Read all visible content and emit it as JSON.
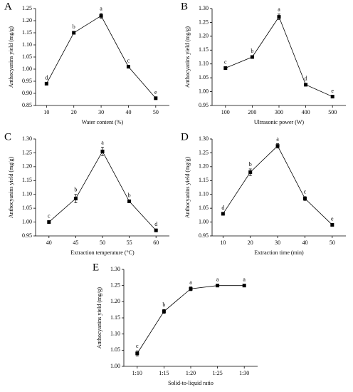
{
  "chart_data": [
    {
      "type": "line",
      "panel": "A",
      "x_label": "Water content (%)",
      "y_label": "Anthocyanins yield (mg/g)",
      "x": [
        10,
        20,
        30,
        40,
        50
      ],
      "values": [
        0.94,
        1.15,
        1.22,
        1.01,
        0.88
      ],
      "errors": [
        0.005,
        0.005,
        0.01,
        0.005,
        0.005
      ],
      "letters": [
        "d",
        "b",
        "a",
        "c",
        "e"
      ],
      "color": "#000000",
      "xlim": [
        6,
        55
      ],
      "xticks": [
        10,
        20,
        30,
        40,
        50
      ],
      "ylim": [
        0.85,
        1.25
      ],
      "yticks": [
        0.85,
        {
          "value": 0.9,
          "label": "0.90"
        },
        0.95,
        {
          "value": 1.0,
          "label": "1.00"
        },
        1.05,
        {
          "value": 1.1,
          "label": "1.10"
        },
        1.15,
        {
          "value": 1.2,
          "label": "1.20"
        },
        1.25
      ]
    },
    {
      "type": "line",
      "panel": "B",
      "x_label": "Ultrasonic power (W)",
      "y_label": "Anthocyanins yield (mg/g)",
      "x": [
        100,
        200,
        300,
        400,
        500
      ],
      "values": [
        1.085,
        1.125,
        1.27,
        1.025,
        0.982
      ],
      "errors": [
        0.005,
        0.005,
        0.01,
        0.005,
        0.004
      ],
      "letters": [
        "c",
        "b",
        "a",
        "d",
        "e"
      ],
      "color": "#000000",
      "xlim": [
        50,
        550
      ],
      "xticks": [
        100,
        200,
        300,
        400,
        500
      ],
      "ylim": [
        0.95,
        1.3
      ],
      "yticks": [
        0.95,
        {
          "value": 1.0,
          "label": "1.00"
        },
        1.05,
        {
          "value": 1.1,
          "label": "1.10"
        },
        1.15,
        {
          "value": 1.2,
          "label": "1.20"
        },
        1.25,
        {
          "value": 1.3,
          "label": "1.30"
        }
      ]
    },
    {
      "type": "line",
      "panel": "C",
      "x_label": "Extraction temperature (°C)",
      "y_label": "Anthocyanins yield (mg/g)",
      "x": [
        40,
        45,
        50,
        55,
        60
      ],
      "values": [
        1.0,
        1.085,
        1.255,
        1.075,
        0.97
      ],
      "errors": [
        0.005,
        0.015,
        0.015,
        0.005,
        0.005
      ],
      "letters": [
        "c",
        "b",
        "a",
        "b",
        "d"
      ],
      "color": "#000000",
      "xlim": [
        37.5,
        62.5
      ],
      "xticks": [
        40,
        45,
        50,
        55,
        60
      ],
      "ylim": [
        0.95,
        1.3
      ],
      "yticks": [
        0.95,
        {
          "value": 1.0,
          "label": "1.00"
        },
        1.05,
        {
          "value": 1.1,
          "label": "1.10"
        },
        1.15,
        {
          "value": 1.2,
          "label": "1.20"
        },
        1.25,
        {
          "value": 1.3,
          "label": "1.30"
        }
      ]
    },
    {
      "type": "line",
      "panel": "D",
      "x_label": "Extraction time (min)",
      "y_label": "Anthocyanins yield (mg/g)",
      "x": [
        10,
        20,
        30,
        40,
        50
      ],
      "values": [
        1.03,
        1.18,
        1.275,
        1.085,
        0.99
      ],
      "errors": [
        0.005,
        0.012,
        0.008,
        0.007,
        0.005
      ],
      "letters": [
        "d",
        "b",
        "a",
        "c",
        "e"
      ],
      "color": "#000000",
      "xlim": [
        6,
        55
      ],
      "xticks": [
        10,
        20,
        30,
        40,
        50
      ],
      "ylim": [
        0.95,
        1.3
      ],
      "yticks": [
        0.95,
        {
          "value": 1.0,
          "label": "1.00"
        },
        1.05,
        {
          "value": 1.1,
          "label": "1.10"
        },
        1.15,
        {
          "value": 1.2,
          "label": "1.20"
        },
        1.25,
        {
          "value": 1.3,
          "label": "1.30"
        }
      ]
    },
    {
      "type": "line",
      "panel": "E",
      "x_label": "Solid-to-liquid ratio",
      "y_label": "Anthocyanins yield (mg/g)",
      "categories": [
        "1:10",
        "1:15",
        "1:20",
        "1:25",
        "1:30"
      ],
      "values": [
        1.04,
        1.17,
        1.24,
        1.25,
        1.25
      ],
      "errors": [
        0.008,
        0.006,
        0.006,
        0.004,
        0.004
      ],
      "letters": [
        "c",
        "b",
        "a",
        "a",
        "a"
      ],
      "color": "#000000",
      "ylim": [
        1.0,
        1.3
      ],
      "yticks": [
        {
          "value": 1.0,
          "label": "1.00"
        },
        1.05,
        {
          "value": 1.1,
          "label": "1.10"
        },
        1.15,
        {
          "value": 1.2,
          "label": "1.20"
        },
        1.25,
        {
          "value": 1.3,
          "label": "1.30"
        }
      ]
    }
  ]
}
